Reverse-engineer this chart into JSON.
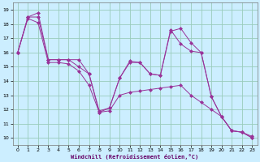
{
  "xlabel": "Windchill (Refroidissement éolien,°C)",
  "background_color": "#cceeff",
  "line_color": "#993399",
  "grid_color": "#99ccbb",
  "ylim": [
    9.5,
    19.5
  ],
  "xlim": [
    -0.5,
    23.5
  ],
  "yticks": [
    10,
    11,
    12,
    13,
    14,
    15,
    16,
    17,
    18,
    19
  ],
  "xticks": [
    0,
    1,
    2,
    3,
    4,
    5,
    6,
    7,
    8,
    9,
    10,
    11,
    12,
    13,
    14,
    15,
    16,
    17,
    18,
    19,
    20,
    21,
    22,
    23
  ],
  "line1_x": [
    0,
    1,
    2,
    3,
    4,
    5,
    6,
    7,
    8,
    9,
    10,
    11,
    12,
    13,
    14,
    15,
    16,
    17,
    18,
    19,
    20,
    21,
    22,
    23
  ],
  "line1_y": [
    16.0,
    18.4,
    18.1,
    15.3,
    15.3,
    15.2,
    14.7,
    13.7,
    11.8,
    11.9,
    13.0,
    13.2,
    13.3,
    13.4,
    13.5,
    13.6,
    13.7,
    13.0,
    12.5,
    12.0,
    11.5,
    10.5,
    10.4,
    10.0
  ],
  "line2_x": [
    0,
    1,
    2,
    3,
    4,
    5,
    6,
    7,
    8,
    9,
    10,
    11,
    12,
    13,
    14,
    15,
    16,
    17,
    18,
    19,
    20,
    21,
    22,
    23
  ],
  "line2_y": [
    16.0,
    18.5,
    18.8,
    15.5,
    15.5,
    15.5,
    15.0,
    14.5,
    11.8,
    12.1,
    14.2,
    15.3,
    15.3,
    14.5,
    14.4,
    17.6,
    16.6,
    16.1,
    16.0,
    12.9,
    11.5,
    10.5,
    10.4,
    10.1
  ],
  "line3_x": [
    0,
    1,
    2,
    3,
    4,
    5,
    6,
    7,
    8,
    9,
    10,
    11,
    12,
    13,
    14,
    15,
    16,
    17,
    18,
    19,
    20,
    21,
    22,
    23
  ],
  "line3_y": [
    16.0,
    18.5,
    18.5,
    15.5,
    15.5,
    15.5,
    15.5,
    14.5,
    11.9,
    12.1,
    14.2,
    15.4,
    15.3,
    14.5,
    14.4,
    17.5,
    17.7,
    16.7,
    16.0,
    12.9,
    11.5,
    10.5,
    10.4,
    10.0
  ]
}
